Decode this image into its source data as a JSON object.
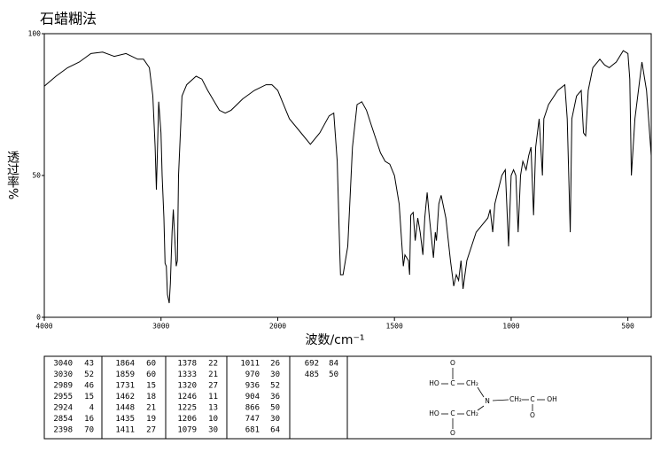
{
  "chart_data": {
    "type": "line",
    "title": "石蜡糊法",
    "x_label": "波数/cm⁻¹",
    "y_label": "透过率%",
    "color": "#000000",
    "xlim": [
      4000,
      400
    ],
    "xscale_change_at": 2000,
    "ylim": [
      0,
      100
    ],
    "xticks": [
      4000,
      3000,
      2000,
      1500,
      1000,
      500
    ],
    "yticks": [
      0,
      50,
      100
    ],
    "x": [
      4000,
      3900,
      3800,
      3700,
      3600,
      3500,
      3400,
      3300,
      3200,
      3150,
      3100,
      3070,
      3050,
      3040,
      3030,
      3020,
      3000,
      2990,
      2975,
      2965,
      2955,
      2945,
      2930,
      2920,
      2905,
      2895,
      2885,
      2870,
      2860,
      2850,
      2820,
      2780,
      2700,
      2650,
      2600,
      2500,
      2450,
      2400,
      2300,
      2200,
      2100,
      2050,
      2000,
      1950,
      1900,
      1860,
      1820,
      1780,
      1760,
      1745,
      1735,
      1731,
      1720,
      1700,
      1680,
      1660,
      1640,
      1620,
      1600,
      1580,
      1560,
      1540,
      1520,
      1500,
      1480,
      1462,
      1455,
      1440,
      1435,
      1430,
      1420,
      1411,
      1400,
      1390,
      1378,
      1370,
      1360,
      1350,
      1333,
      1325,
      1320,
      1310,
      1300,
      1280,
      1260,
      1246,
      1235,
      1225,
      1215,
      1206,
      1190,
      1150,
      1100,
      1090,
      1079,
      1070,
      1040,
      1025,
      1011,
      1000,
      990,
      980,
      970,
      960,
      950,
      936,
      925,
      915,
      904,
      895,
      880,
      866,
      860,
      840,
      800,
      770,
      760,
      747,
      740,
      720,
      700,
      690,
      681,
      670,
      650,
      620,
      600,
      580,
      550,
      520,
      500,
      492,
      485,
      470,
      440,
      420,
      400
    ],
    "values": [
      81.5,
      85,
      88,
      90,
      93,
      93.5,
      92,
      93,
      91,
      91,
      88,
      78,
      60,
      45,
      60,
      76,
      65,
      50,
      35,
      19,
      18,
      8,
      5,
      12,
      30,
      38,
      30,
      18,
      20,
      50,
      78,
      82,
      85,
      84,
      80,
      73,
      72,
      73,
      77,
      80,
      82,
      82,
      80,
      70,
      65,
      61,
      65,
      71,
      72,
      55,
      25,
      15,
      15,
      25,
      60,
      75,
      76,
      73,
      68,
      63,
      58,
      55,
      54,
      50,
      40,
      18,
      22,
      20,
      15,
      36,
      37,
      27,
      35,
      30,
      22,
      35,
      44,
      35,
      21,
      30,
      27,
      40,
      43,
      35,
      20,
      11,
      15,
      13,
      20,
      10,
      20,
      30,
      35,
      38,
      30,
      40,
      50,
      52,
      25,
      50,
      52,
      50,
      30,
      50,
      55,
      52,
      57,
      60,
      36,
      60,
      70,
      50,
      70,
      75,
      80,
      82,
      70,
      30,
      70,
      78,
      80,
      65,
      64,
      80,
      88,
      91,
      89,
      88,
      90,
      94,
      93,
      84,
      50,
      70,
      90,
      80,
      57
    ]
  },
  "peak_table": [
    [
      [
        3040,
        43
      ],
      [
        3030,
        52
      ],
      [
        2989,
        46
      ],
      [
        2955,
        15
      ],
      [
        2924,
        4
      ],
      [
        2854,
        16
      ],
      [
        2398,
        70
      ]
    ],
    [
      [
        1864,
        60
      ],
      [
        1859,
        60
      ],
      [
        1731,
        15
      ],
      [
        1462,
        18
      ],
      [
        1448,
        21
      ],
      [
        1435,
        19
      ],
      [
        1411,
        27
      ]
    ],
    [
      [
        1378,
        22
      ],
      [
        1333,
        21
      ],
      [
        1320,
        27
      ],
      [
        1246,
        11
      ],
      [
        1225,
        13
      ],
      [
        1206,
        10
      ],
      [
        1079,
        30
      ]
    ],
    [
      [
        1011,
        26
      ],
      [
        970,
        30
      ],
      [
        936,
        52
      ],
      [
        904,
        36
      ],
      [
        866,
        50
      ],
      [
        747,
        30
      ],
      [
        681,
        64
      ]
    ],
    [
      [
        692,
        84
      ],
      [
        485,
        50
      ]
    ]
  ],
  "structure": {
    "labels": [
      "O",
      "HO",
      "C",
      "CH₂",
      "N",
      "CH₂",
      "C",
      "OH",
      "O",
      "HO",
      "C",
      "CH₂",
      "O"
    ]
  }
}
